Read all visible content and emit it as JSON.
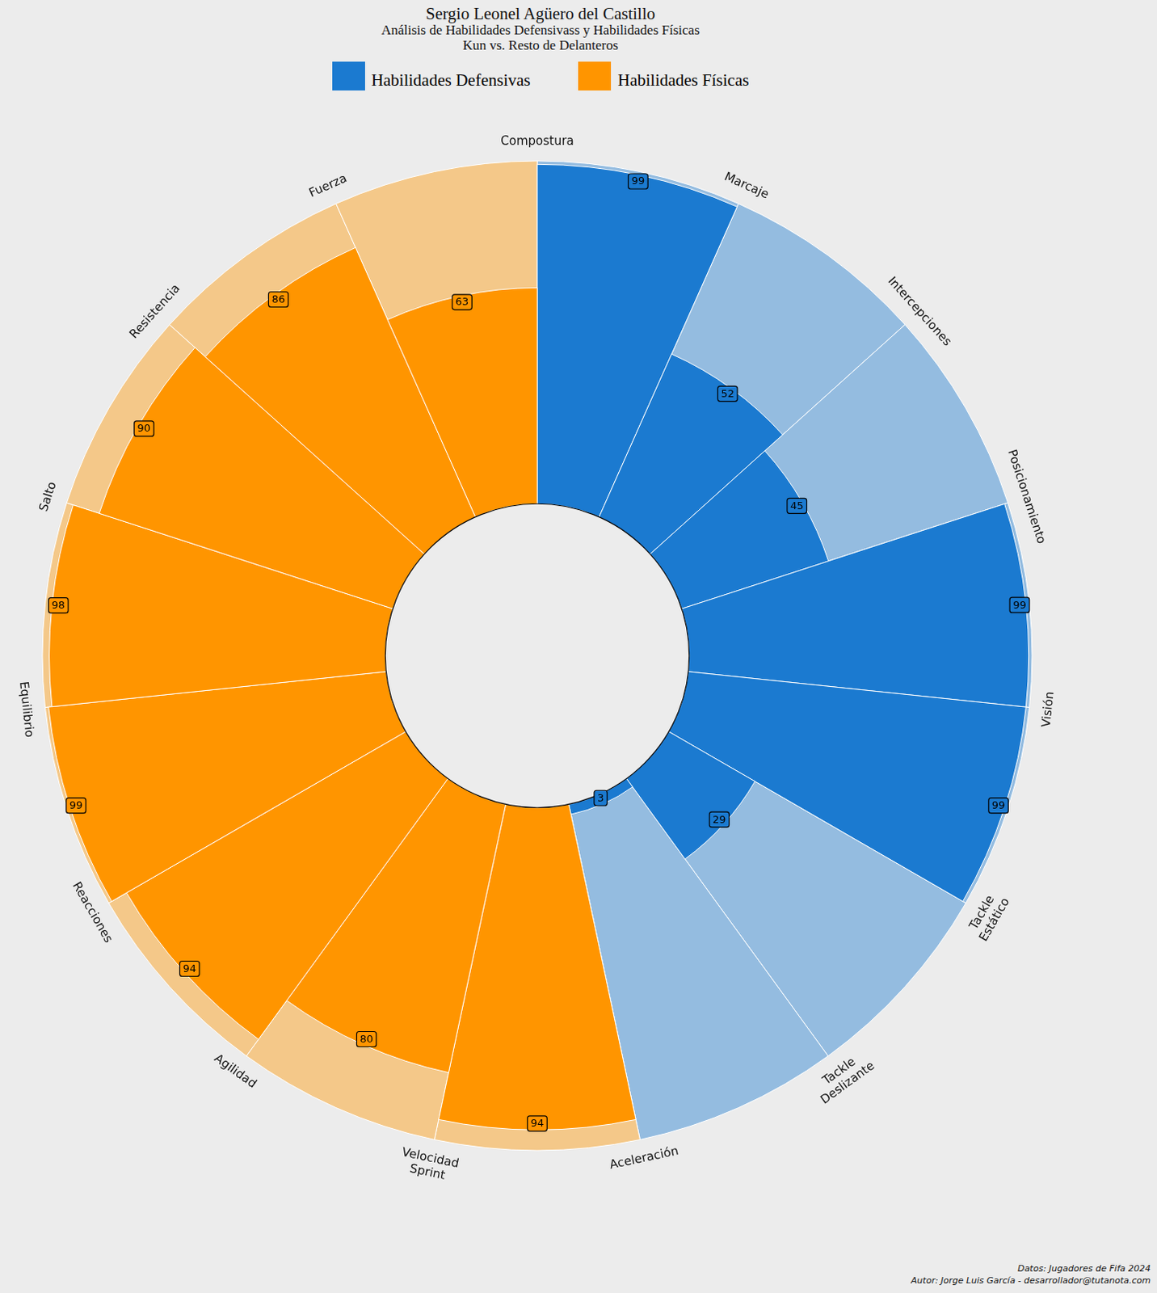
{
  "chart_data": {
    "type": "polarArea",
    "title": "Sergio Leonel Agüero del Castillo",
    "subtitle": [
      "Análisis de Habilidades Defensivass y Habilidades Físicas",
      "Kun vs. Resto de Delanteros"
    ],
    "series": [
      {
        "name": "Habilidades Defensivas",
        "color": "#1b7ad0",
        "categories": [
          "Compostura",
          "Marcaje",
          "Intercepciones",
          "Posicionamiento",
          "Visión",
          "Tackle Estático",
          "Tackle Deslizante"
        ],
        "values": [
          99,
          52,
          45,
          99,
          99,
          29,
          3
        ]
      },
      {
        "name": "Habilidades Físicas",
        "color": "#ff9500",
        "categories": [
          "Aceleración",
          "Velocidad Sprint",
          "Agilidad",
          "Reacciones",
          "Equilibrio",
          "Salto",
          "Resistencia",
          "Fuerza"
        ],
        "values": [
          94,
          80,
          94,
          99,
          98,
          90,
          86,
          63
        ]
      }
    ],
    "ylim": [
      0,
      100
    ],
    "grid": false,
    "tick_labels": false,
    "data_labels": true,
    "legend": "top",
    "source": "Datos: Jugadores de Fifa 2024",
    "author": "Autor: Jorge Luis García - desarrollador@tutanota.com"
  }
}
